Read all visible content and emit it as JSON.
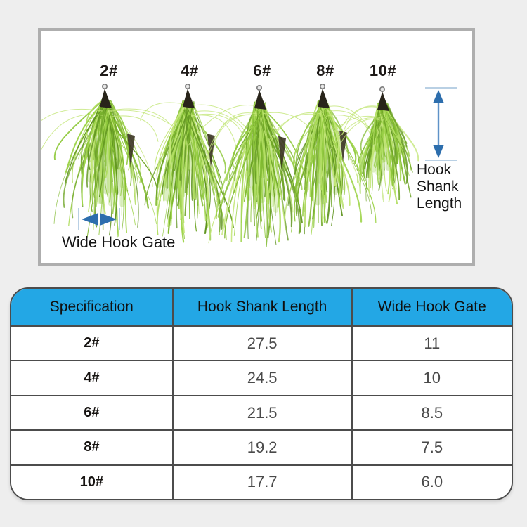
{
  "colors": {
    "page_bg": "#eeeeee",
    "panel_border": "#aeaeae",
    "header_bg": "#23a7e5",
    "table_border": "#4c4c4c",
    "arrow_blue": "#2d6ead",
    "arrow_shaft": "#5e92c8",
    "tick_blue": "#b9d0e4",
    "hook_dark": "#28241a",
    "feather_greens": [
      "#6fa527",
      "#7fb92e",
      "#8fc93c",
      "#9ed44a",
      "#b2de62",
      "#c3e678",
      "#5f941f"
    ]
  },
  "photo_panel": {
    "fly_labels": [
      "2#",
      "4#",
      "6#",
      "8#",
      "10#"
    ],
    "annotations": {
      "shank_label": {
        "line1": "Hook",
        "line2": "Shank",
        "line3": "Length"
      },
      "gate_label": "Wide Hook Gate"
    }
  },
  "table": {
    "columns": [
      "Specification",
      "Hook Shank Length",
      "Wide Hook Gate"
    ],
    "rows": [
      {
        "spec": "2#",
        "shank_length": "27.5",
        "hook_gate": "11"
      },
      {
        "spec": "4#",
        "shank_length": "24.5",
        "hook_gate": "10"
      },
      {
        "spec": "6#",
        "shank_length": "21.5",
        "hook_gate": "8.5"
      },
      {
        "spec": "8#",
        "shank_length": "19.2",
        "hook_gate": "7.5"
      },
      {
        "spec": "10#",
        "shank_length": "17.7",
        "hook_gate": "6.0"
      }
    ]
  },
  "chart_data": {
    "type": "table",
    "title": "Feather hook size specifications",
    "columns": [
      "Specification",
      "Hook Shank Length",
      "Wide Hook Gate"
    ],
    "rows": [
      [
        "2#",
        27.5,
        11
      ],
      [
        "4#",
        24.5,
        10
      ],
      [
        "6#",
        21.5,
        8.5
      ],
      [
        "8#",
        19.2,
        7.5
      ],
      [
        "10#",
        17.7,
        6.0
      ]
    ]
  }
}
